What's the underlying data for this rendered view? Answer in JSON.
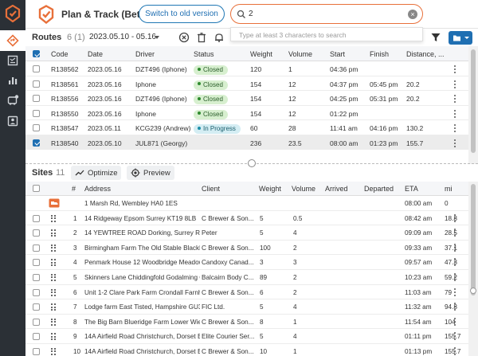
{
  "header": {
    "title": "Plan & Track (Beta)",
    "switch_label": "Switch to old version",
    "search_value": "2",
    "search_hint": "Type at least 3 characters to search"
  },
  "colors": {
    "brand": "#e8703a",
    "accent": "#1f6fb2",
    "sidebar": "#2b3036"
  },
  "routes": {
    "title": "Routes",
    "count": "6 (1)",
    "date_range": "2023.05.10 - 05.16",
    "columns": [
      "Code",
      "Date",
      "Driver",
      "Status",
      "Weight",
      "Volume",
      "Start",
      "Finish",
      "Distance, ..."
    ],
    "rows": [
      {
        "code": "R138562",
        "date": "2023.05.16",
        "driver": "DZT496 (Iphone)",
        "status": "Closed",
        "weight": "120",
        "volume": "1",
        "start": "04:36 pm",
        "finish": "",
        "distance": "",
        "selected": false
      },
      {
        "code": "R138561",
        "date": "2023.05.16",
        "driver": "Iphone",
        "status": "Closed",
        "weight": "154",
        "volume": "12",
        "start": "04:37 pm",
        "finish": "05:45 pm",
        "distance": "20.2",
        "selected": false
      },
      {
        "code": "R138556",
        "date": "2023.05.16",
        "driver": "DZT496 (Iphone)",
        "status": "Closed",
        "weight": "154",
        "volume": "12",
        "start": "04:25 pm",
        "finish": "05:31 pm",
        "distance": "20.2",
        "selected": false
      },
      {
        "code": "R138550",
        "date": "2023.05.16",
        "driver": "Iphone",
        "status": "Closed",
        "weight": "154",
        "volume": "12",
        "start": "01:22 pm",
        "finish": "",
        "distance": "",
        "selected": false
      },
      {
        "code": "R138547",
        "date": "2023.05.11",
        "driver": "KCG239 (Andrew)",
        "status": "In Progress",
        "weight": "60",
        "volume": "28",
        "start": "11:41 am",
        "finish": "04:16 pm",
        "distance": "130.2",
        "selected": false
      },
      {
        "code": "R138540",
        "date": "2023.05.10",
        "driver": "JUL871 (Georgy)",
        "status": "",
        "weight": "236",
        "volume": "23.5",
        "start": "08:00 am",
        "finish": "01:23 pm",
        "distance": "155.7",
        "selected": true
      }
    ]
  },
  "sites": {
    "title": "Sites",
    "count": "11",
    "optimize_label": "Optimize",
    "preview_label": "Preview",
    "columns": [
      "#",
      "Address",
      "Client",
      "Weight",
      "Volume",
      "Arrived",
      "Departed",
      "ETA",
      "mi"
    ],
    "depot": {
      "address": "1 Marsh Rd, Wembley HA0 1ES",
      "eta": "08:00 am",
      "mi": "0"
    },
    "rows": [
      {
        "num": "1",
        "address": "14 Ridgeway Epsom Surrey KT19 8LB",
        "client": "C Brewer & Son...",
        "weight": "5",
        "volume": "0.5",
        "eta": "08:42 am",
        "mi": "18.8"
      },
      {
        "num": "2",
        "address": "14 YEWTREE ROAD Dorking, Surrey RH4 1",
        "client": "Peter",
        "weight": "5",
        "volume": "4",
        "eta": "09:09 am",
        "mi": "28.5"
      },
      {
        "num": "3",
        "address": "Birmingham Farm The Old Stable Blackhe",
        "client": "C Brewer & Son...",
        "weight": "100",
        "volume": "2",
        "eta": "09:33 am",
        "mi": "37.1"
      },
      {
        "num": "4",
        "address": "Penmark House 12 Woodbridge Meadow",
        "client": "Candoxy Canad...",
        "weight": "3",
        "volume": "3",
        "eta": "09:57 am",
        "mi": "47.3"
      },
      {
        "num": "5",
        "address": "Skinners Lane Chiddingfold Godalming G",
        "client": "Balcairn Body C...",
        "weight": "89",
        "volume": "2",
        "eta": "10:23 am",
        "mi": "59.2"
      },
      {
        "num": "6",
        "address": "Unit 1-2 Clare Park Farm Crondall Farnha",
        "client": "C Brewer & Son...",
        "weight": "6",
        "volume": "2",
        "eta": "11:03 am",
        "mi": "79"
      },
      {
        "num": "7",
        "address": "Lodge farm East Tisted, Hampshire GU34",
        "client": "FIC Ltd.",
        "weight": "5",
        "volume": "4",
        "eta": "11:32 am",
        "mi": "94.8"
      },
      {
        "num": "8",
        "address": "The Big Barn Blueridge Farm Lower Wield",
        "client": "C Brewer & Son...",
        "weight": "8",
        "volume": "1",
        "eta": "11:54 am",
        "mi": "104"
      },
      {
        "num": "9",
        "address": "14A Airfield Road Christchurch, Dorset BH",
        "client": "Elite Courier Ser...",
        "weight": "5",
        "volume": "4",
        "eta": "01:11 pm",
        "mi": "155.7"
      },
      {
        "num": "10",
        "address": "14A Airfield Road Christchurch, Dorset BH",
        "client": "C Brewer & Son...",
        "weight": "10",
        "volume": "1",
        "eta": "01:13 pm",
        "mi": "155.7"
      }
    ]
  }
}
